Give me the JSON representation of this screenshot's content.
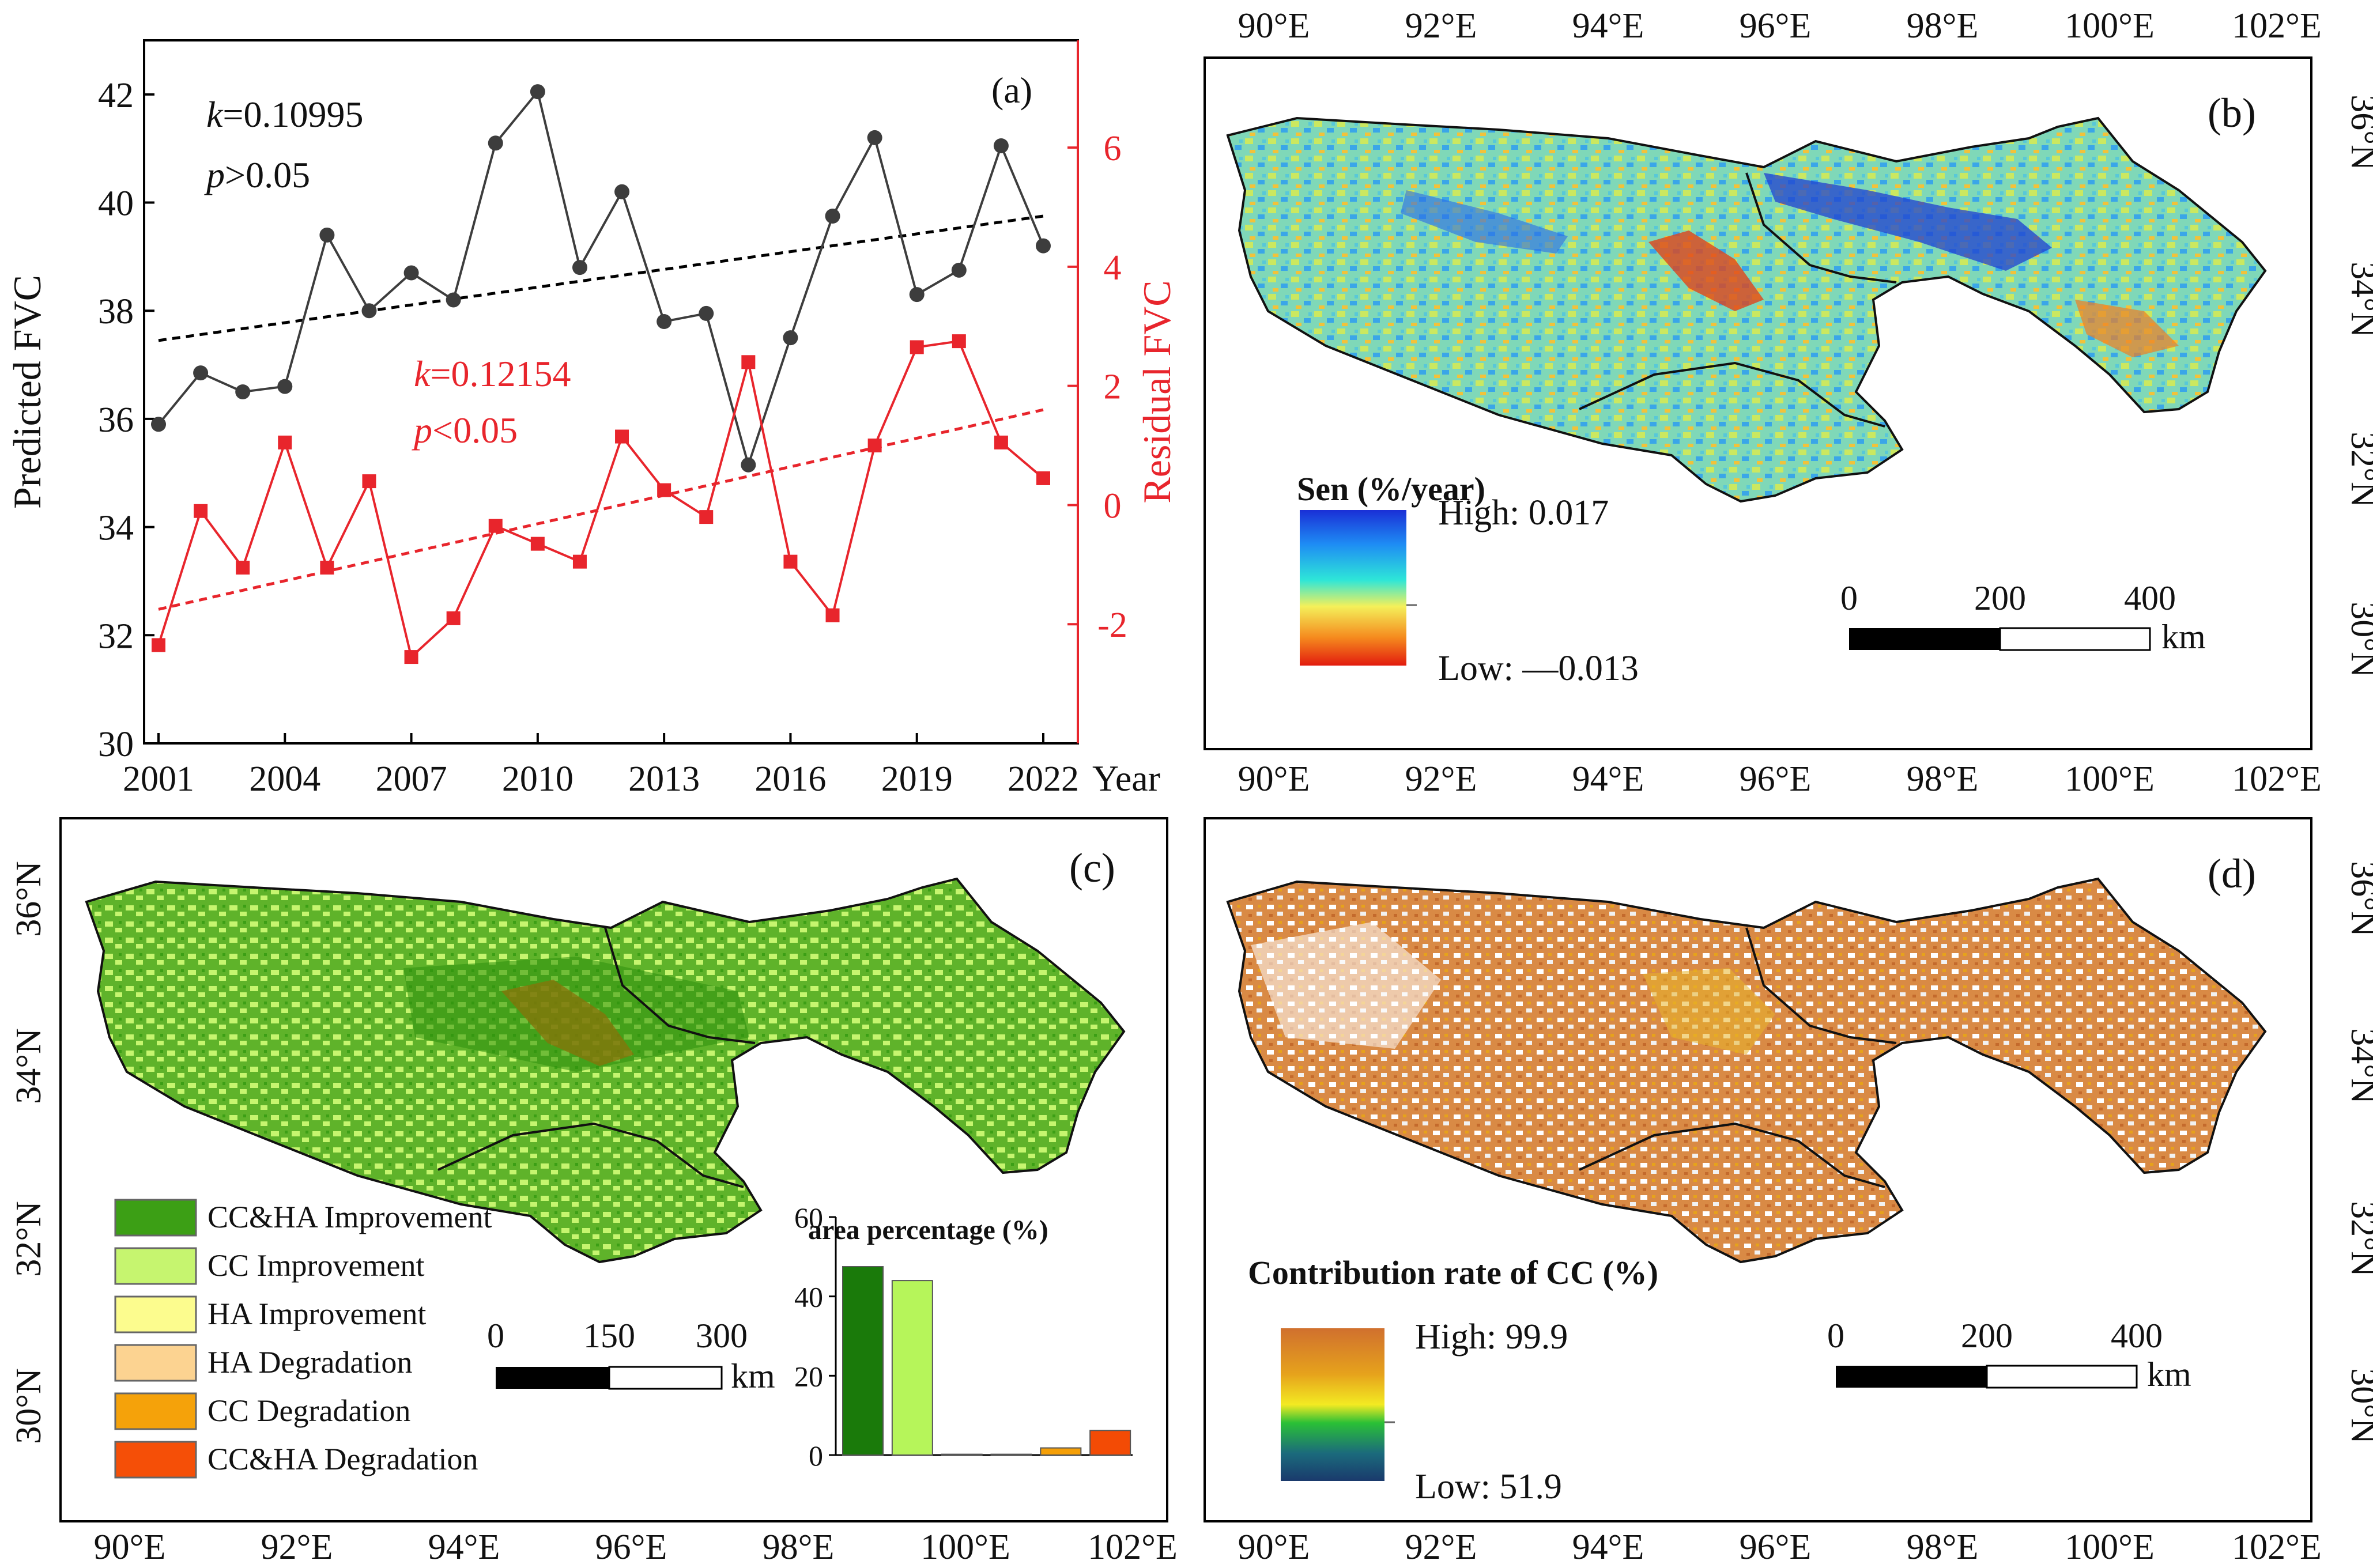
{
  "chart_data": [
    {
      "panel": "(a)",
      "type": "line",
      "xlabel": "Year",
      "ylabel": "Predicted FVC",
      "y2label": "Residual FVC",
      "x": [
        2001,
        2002,
        2003,
        2004,
        2005,
        2006,
        2007,
        2008,
        2009,
        2010,
        2011,
        2012,
        2013,
        2014,
        2015,
        2016,
        2017,
        2018,
        2019,
        2020,
        2021,
        2022
      ],
      "x_ticks": [
        "2001",
        "2004",
        "2007",
        "2010",
        "2013",
        "2016",
        "2019",
        "2022"
      ],
      "ylim": [
        30,
        43
      ],
      "y_ticks": [
        "30",
        "32",
        "34",
        "36",
        "38",
        "40",
        "42"
      ],
      "y2lim": [
        -4,
        7.8
      ],
      "y2_ticks": [
        "-2",
        "0",
        "2",
        "4",
        "6"
      ],
      "series": [
        {
          "name": "Predicted FVC",
          "axis": "left",
          "color": "#3d3d3d",
          "marker": "circle",
          "values": [
            35.9,
            36.85,
            36.5,
            36.6,
            39.4,
            38.0,
            38.7,
            38.2,
            41.1,
            42.05,
            38.8,
            40.2,
            37.8,
            37.95,
            35.15,
            37.5,
            39.75,
            41.2,
            38.3,
            38.75,
            41.05,
            39.2
          ]
        },
        {
          "name": "Residual FVC",
          "axis": "right",
          "color": "#e8252c",
          "marker": "square",
          "values": [
            -2.35,
            -0.1,
            -1.05,
            1.05,
            -1.05,
            0.4,
            -2.55,
            -1.9,
            -0.35,
            -0.65,
            -0.95,
            1.15,
            0.25,
            -0.2,
            2.4,
            -0.95,
            -1.85,
            1.0,
            2.65,
            2.75,
            1.05,
            0.45
          ]
        }
      ],
      "trends": [
        {
          "axis": "left",
          "color": "#000000",
          "from": [
            2001,
            37.45
          ],
          "to": [
            2022,
            39.75
          ]
        },
        {
          "axis": "right",
          "color": "#e8252c",
          "from": [
            2001,
            -1.75
          ],
          "to": [
            2022,
            1.6
          ]
        }
      ],
      "annotations": {
        "k1_letter": "k",
        "k1_value": "=0.10995",
        "p1_letter": "p",
        "p1_value": ">0.05",
        "k2_letter": "k",
        "k2_value": "=0.12154",
        "p2_letter": "p",
        "p2_value": "<0.05"
      }
    },
    {
      "panel": "(c-inset)",
      "type": "bar",
      "title": "area percentage (%)",
      "categories": [
        "CC&HA Improvement",
        "CC Improvement",
        "HA Improvement",
        "HA Degradation",
        "CC Degradation",
        "CC&HA Degradation"
      ],
      "values": [
        47.5,
        44.0,
        0.2,
        0.2,
        1.8,
        6.2
      ],
      "colors": [
        "#1a7a0a",
        "#b6f55a",
        "#fbfa8e",
        "#fcd79a",
        "#f59f07",
        "#f34b05"
      ],
      "ylim": [
        0,
        60
      ],
      "y_ticks": [
        "0",
        "20",
        "40",
        "60"
      ]
    }
  ],
  "maps": {
    "lon_labels": [
      "90°E",
      "92°E",
      "94°E",
      "96°E",
      "98°E",
      "100°E",
      "102°E"
    ],
    "lat_labels": [
      "36°N",
      "34°N",
      "32°N",
      "30°N"
    ],
    "b": {
      "label": "(b)",
      "legend_title": "Sen (%/year)",
      "high": "High: 0.017",
      "low": "Low: —0.013",
      "ramp": [
        "#1a2fd6",
        "#1e8cf4",
        "#2ee6d8",
        "#f4f05a",
        "#f58a1e",
        "#e21b0e"
      ],
      "scale_ticks": [
        "0",
        "200",
        "400"
      ],
      "scale_unit": "km"
    },
    "c": {
      "label": "(c)",
      "legend": [
        {
          "label": "CC&HA Improvement",
          "color": "#3c9f15"
        },
        {
          "label": "CC Improvement",
          "color": "#c6f56f"
        },
        {
          "label": "HA Improvement",
          "color": "#fcfc8e"
        },
        {
          "label": "HA Degradation",
          "color": "#fcd391"
        },
        {
          "label": "CC Degradation",
          "color": "#f5a20a"
        },
        {
          "label": "CC&HA Degradation",
          "color": "#f54f07"
        }
      ],
      "scale_ticks": [
        "0",
        "150",
        "300"
      ],
      "scale_unit": "km"
    },
    "d": {
      "label": "(d)",
      "legend_title": "Contribution rate of CC (%)",
      "high": "High: 99.9",
      "low": "Low: 51.9",
      "ramp": [
        "#d0702e",
        "#e6a21c",
        "#f3ea22",
        "#2ac036",
        "#1b6a7c",
        "#1a3a6c"
      ],
      "scale_ticks": [
        "0",
        "200",
        "400"
      ],
      "scale_unit": "km"
    }
  }
}
